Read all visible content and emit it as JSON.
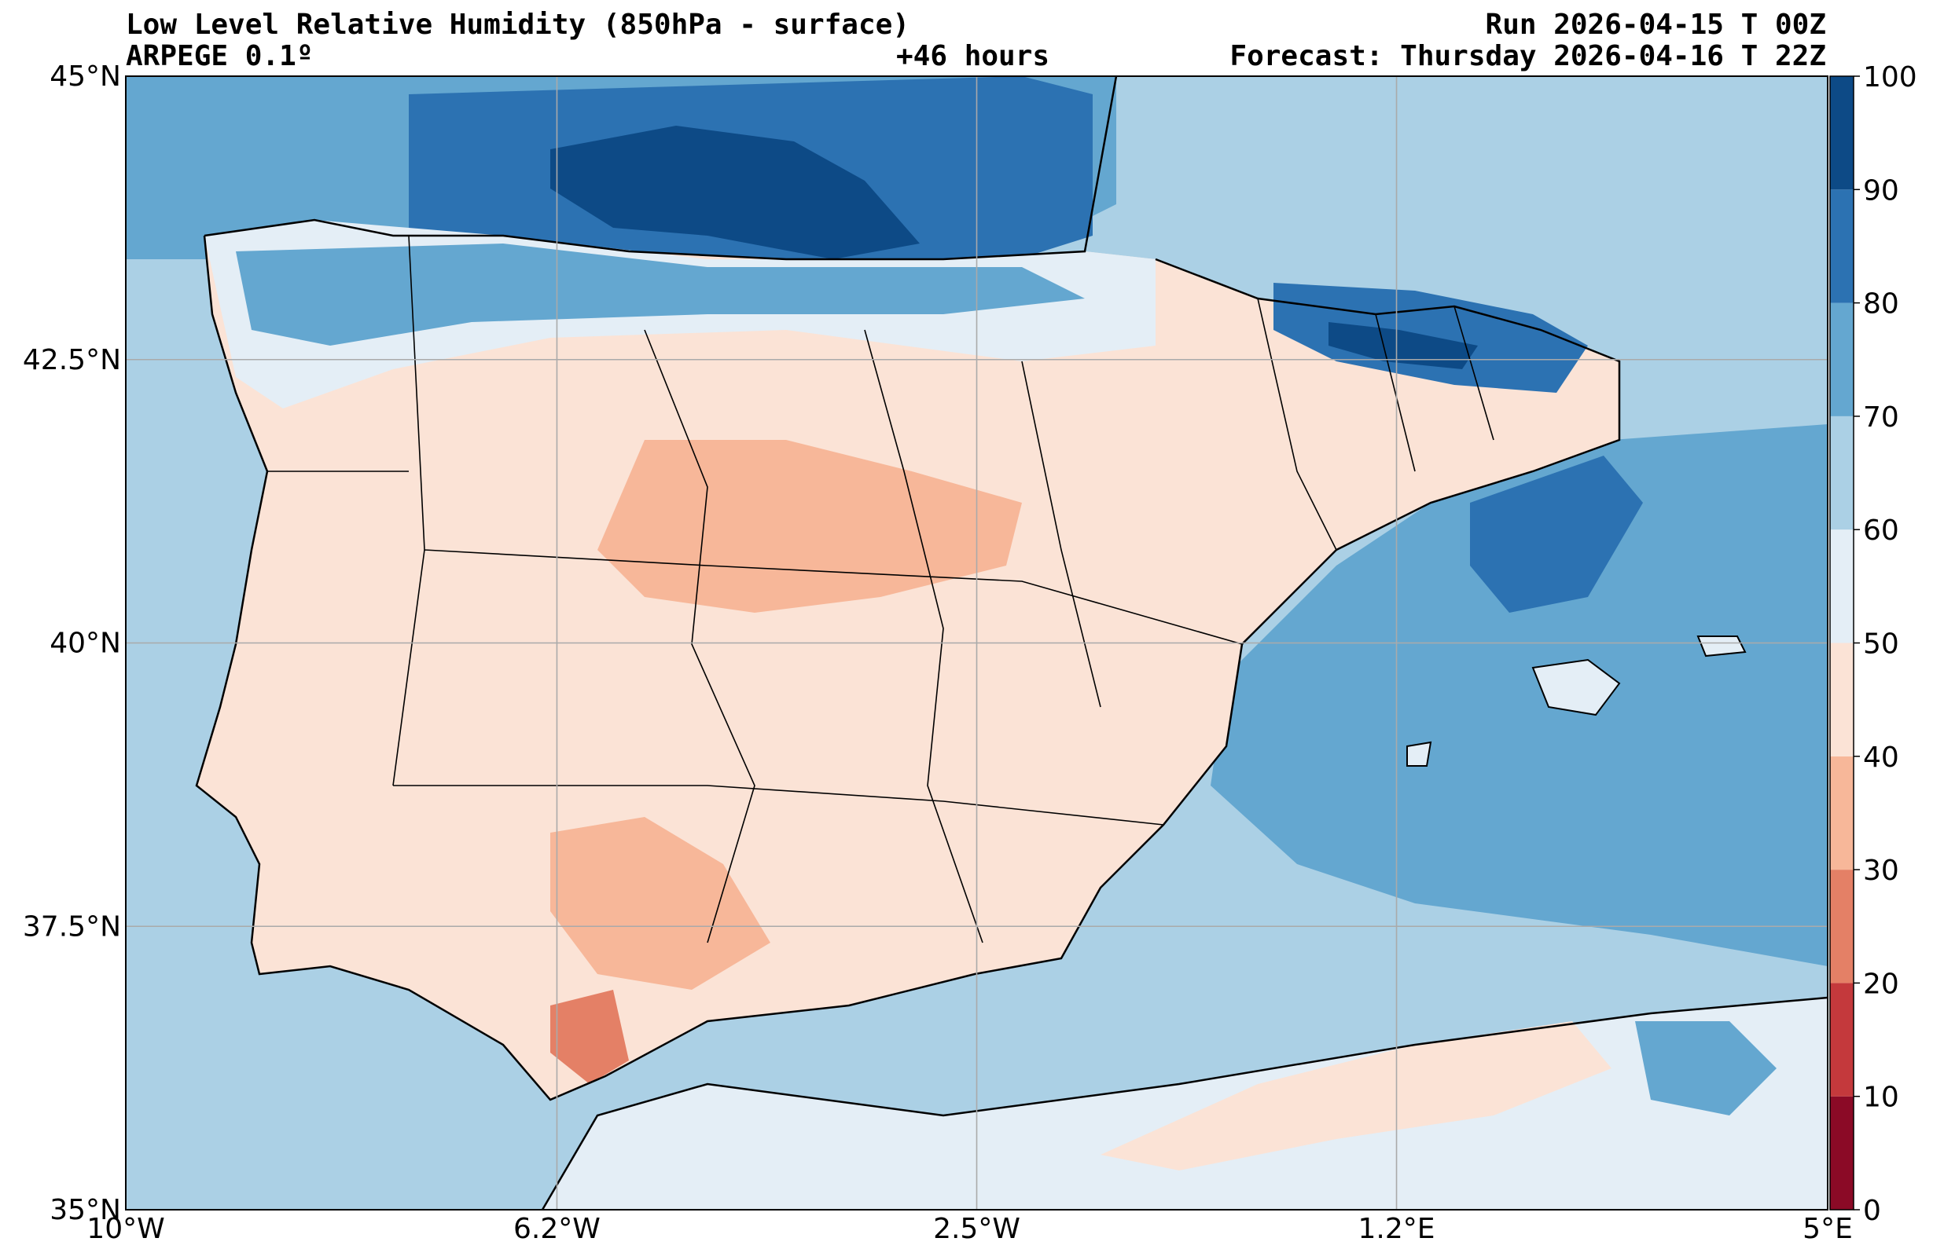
{
  "header": {
    "title": "Low Level Relative Humidity (850hPa - surface)",
    "model": "ARPEGE 0.1º",
    "lead_time": "+46 hours",
    "run": "Run 2026-04-15 T 00Z",
    "forecast": "Forecast: Thursday 2026-04-16 T 22Z"
  },
  "map": {
    "lon_range": [
      -10,
      5
    ],
    "lat_range": [
      35,
      45
    ],
    "lat_ticks": [
      {
        "value": 35,
        "label": "35°N"
      },
      {
        "value": 37.5,
        "label": "37.5°N"
      },
      {
        "value": 40,
        "label": "40°N"
      },
      {
        "value": 42.5,
        "label": "42.5°N"
      },
      {
        "value": 45,
        "label": "45°N"
      }
    ],
    "lon_ticks": [
      {
        "value": -10,
        "label": "10°W"
      },
      {
        "value": -6.2,
        "label": "6.2°W"
      },
      {
        "value": -2.5,
        "label": "2.5°W"
      },
      {
        "value": 1.2,
        "label": "1.2°E"
      },
      {
        "value": 5,
        "label": "5°E"
      }
    ],
    "grid": true
  },
  "colorbar": {
    "levels": [
      0,
      10,
      20,
      30,
      40,
      50,
      60,
      70,
      80,
      90,
      100
    ],
    "labels": [
      "0",
      "10",
      "20",
      "30",
      "40",
      "50",
      "60",
      "70",
      "80",
      "90",
      "100"
    ],
    "colors": [
      "#8b0a26",
      "#c4393c",
      "#e48066",
      "#f7b799",
      "#fbe3d6",
      "#e4eef6",
      "#abd0e5",
      "#64a7d0",
      "#2c72b2",
      "#0d4a86"
    ]
  },
  "colors": {
    "background_sea_mid": "#abd0e5",
    "land_default": "#fbe3d6"
  }
}
